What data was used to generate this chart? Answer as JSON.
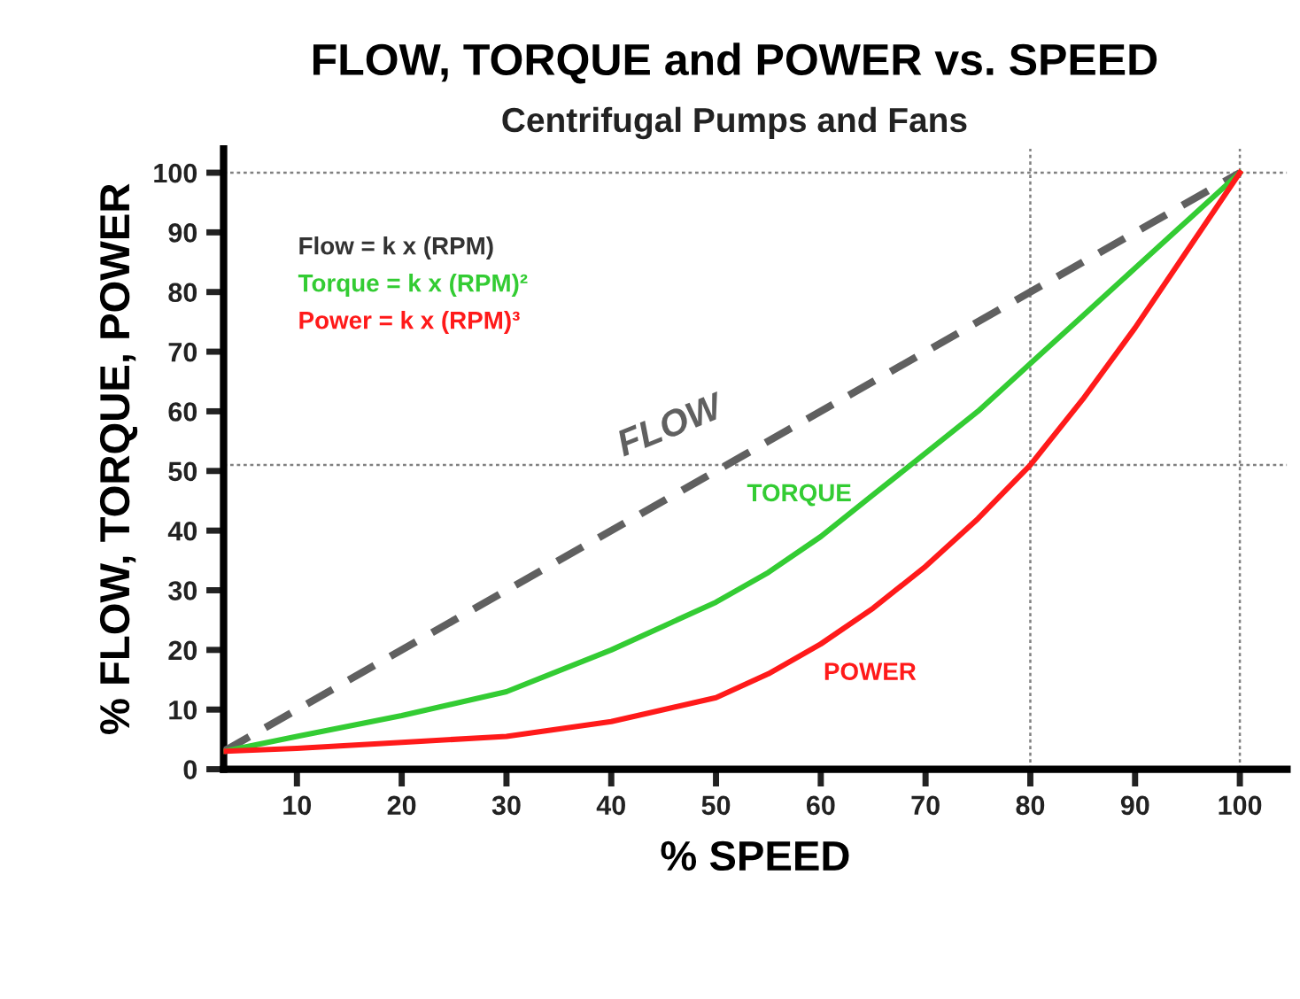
{
  "chart_data": {
    "type": "line",
    "title": "FLOW, TORQUE and POWER vs. SPEED",
    "subtitle": "Centrifugal Pumps and Fans",
    "xlabel": "% SPEED",
    "ylabel": "% FLOW, TORQUE, POWER",
    "xlim": [
      3,
      104.5
    ],
    "ylim": [
      0,
      104
    ],
    "xticks": [
      10,
      20,
      30,
      40,
      50,
      60,
      70,
      80,
      90,
      100
    ],
    "yticks": [
      0,
      10,
      20,
      30,
      40,
      50,
      60,
      70,
      80,
      90,
      100
    ],
    "series": [
      {
        "name": "FLOW",
        "color": "#606060",
        "line_style": "dashed",
        "x": [
          3,
          100
        ],
        "values": [
          3,
          100
        ]
      },
      {
        "name": "TORQUE",
        "color": "#33cc33",
        "line_style": "solid",
        "x": [
          3,
          10,
          20,
          30,
          40,
          45,
          50,
          55,
          60,
          65,
          70,
          75,
          80,
          85,
          90,
          95,
          100
        ],
        "values": [
          3,
          5.5,
          9,
          13,
          20,
          24,
          28,
          33,
          39,
          46,
          53,
          60,
          68,
          76,
          84,
          92,
          100
        ]
      },
      {
        "name": "POWER",
        "color": "#ff1a1a",
        "line_style": "solid",
        "x": [
          3,
          10,
          20,
          30,
          40,
          45,
          50,
          55,
          60,
          65,
          70,
          75,
          80,
          85,
          90,
          95,
          100
        ],
        "values": [
          3,
          3.5,
          4.5,
          5.5,
          8,
          10,
          12,
          16,
          21,
          27,
          34,
          42,
          51,
          62,
          74,
          87,
          100
        ]
      }
    ],
    "ref_lines": [
      {
        "axis": "y",
        "value": 100,
        "color": "#808080",
        "line_style": "dotted"
      },
      {
        "axis": "y",
        "value": 51,
        "color": "#808080",
        "line_style": "dotted"
      },
      {
        "axis": "x",
        "value": 80,
        "color": "#808080",
        "line_style": "dotted"
      },
      {
        "axis": "x",
        "value": 100,
        "color": "#808080",
        "line_style": "dotted"
      }
    ],
    "annotations": [
      "Flow = k x (RPM)",
      "Torque = k x (RPM)²",
      "Power = k x (RPM)³"
    ],
    "grid": false,
    "legend": false,
    "marker": "none"
  }
}
